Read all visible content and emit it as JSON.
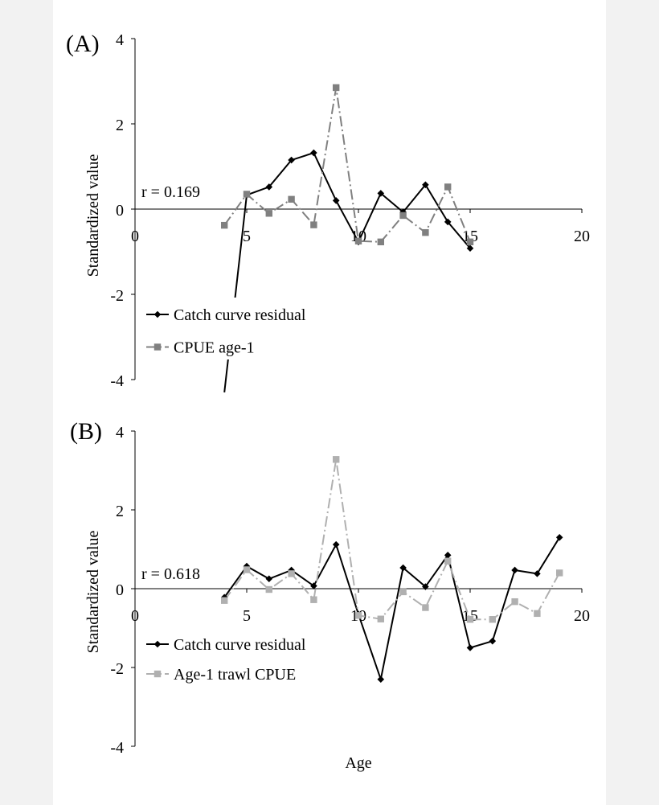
{
  "chart_data": [
    {
      "panel_label": "(A)",
      "type": "line",
      "xlabel": "",
      "ylabel": "Standardized value",
      "xlim": [
        0,
        20
      ],
      "ylim": [
        -4,
        4
      ],
      "xticks": [
        0,
        5,
        10,
        15,
        20
      ],
      "yticks": [
        -4,
        -2,
        0,
        2,
        4
      ],
      "x_tick_labels": [
        "0",
        "5",
        "10",
        "15",
        "20"
      ],
      "y_tick_labels": [
        "-4",
        "-2",
        "0",
        "2",
        "4"
      ],
      "annotation": "r = 0.169",
      "legend_position": "lower-left",
      "grid": false,
      "series": [
        {
          "name": "Catch curve residual",
          "color": "#000000",
          "marker": "diamond",
          "dash": "solid",
          "x": [
            4,
            5,
            6,
            7,
            8,
            9,
            10,
            11,
            12,
            13,
            14,
            15
          ],
          "y": [
            -4.3,
            0.33,
            0.52,
            1.15,
            1.32,
            0.2,
            -0.77,
            0.37,
            -0.07,
            0.57,
            -0.3,
            -0.92
          ]
        },
        {
          "name": "CPUE age-1",
          "color": "#808080",
          "marker": "square",
          "dash": "dashdot",
          "x": [
            4,
            5,
            6,
            7,
            8,
            9,
            10,
            11,
            12,
            13,
            14,
            15
          ],
          "y": [
            -0.38,
            0.35,
            -0.1,
            0.23,
            -0.37,
            2.85,
            -0.75,
            -0.77,
            -0.15,
            -0.55,
            0.52,
            -0.77
          ]
        }
      ]
    },
    {
      "panel_label": "(B)",
      "type": "line",
      "xlabel": "Age",
      "ylabel": "Standardized value",
      "xlim": [
        0,
        20
      ],
      "ylim": [
        -4,
        4
      ],
      "xticks": [
        0,
        5,
        10,
        15,
        20
      ],
      "yticks": [
        -4,
        -2,
        0,
        2,
        4
      ],
      "x_tick_labels": [
        "0",
        "5",
        "10",
        "15",
        "20"
      ],
      "y_tick_labels": [
        "-4",
        "-2",
        "0",
        "2",
        "4"
      ],
      "annotation": "r = 0.618",
      "legend_position": "lower-left",
      "grid": false,
      "series": [
        {
          "name": "Catch curve residual",
          "color": "#000000",
          "marker": "diamond",
          "dash": "solid",
          "x": [
            4,
            5,
            6,
            7,
            8,
            9,
            10,
            11,
            12,
            13,
            14,
            15,
            16,
            17,
            18,
            19
          ],
          "y": [
            -0.22,
            0.57,
            0.25,
            0.47,
            0.07,
            1.12,
            -0.65,
            -2.3,
            0.53,
            0.05,
            0.85,
            -1.5,
            -1.33,
            0.47,
            0.38,
            1.3
          ]
        },
        {
          "name": "Age-1 trawl CPUE",
          "color": "#b0b0b0",
          "marker": "square",
          "dash": "dashdot",
          "x": [
            4,
            5,
            6,
            7,
            8,
            9,
            10,
            11,
            12,
            13,
            14,
            15,
            16,
            17,
            18,
            19
          ],
          "y": [
            -0.3,
            0.48,
            -0.02,
            0.38,
            -0.28,
            3.28,
            -0.68,
            -0.77,
            -0.08,
            -0.48,
            0.7,
            -0.78,
            -0.78,
            -0.33,
            -0.63,
            0.4
          ]
        }
      ]
    }
  ]
}
